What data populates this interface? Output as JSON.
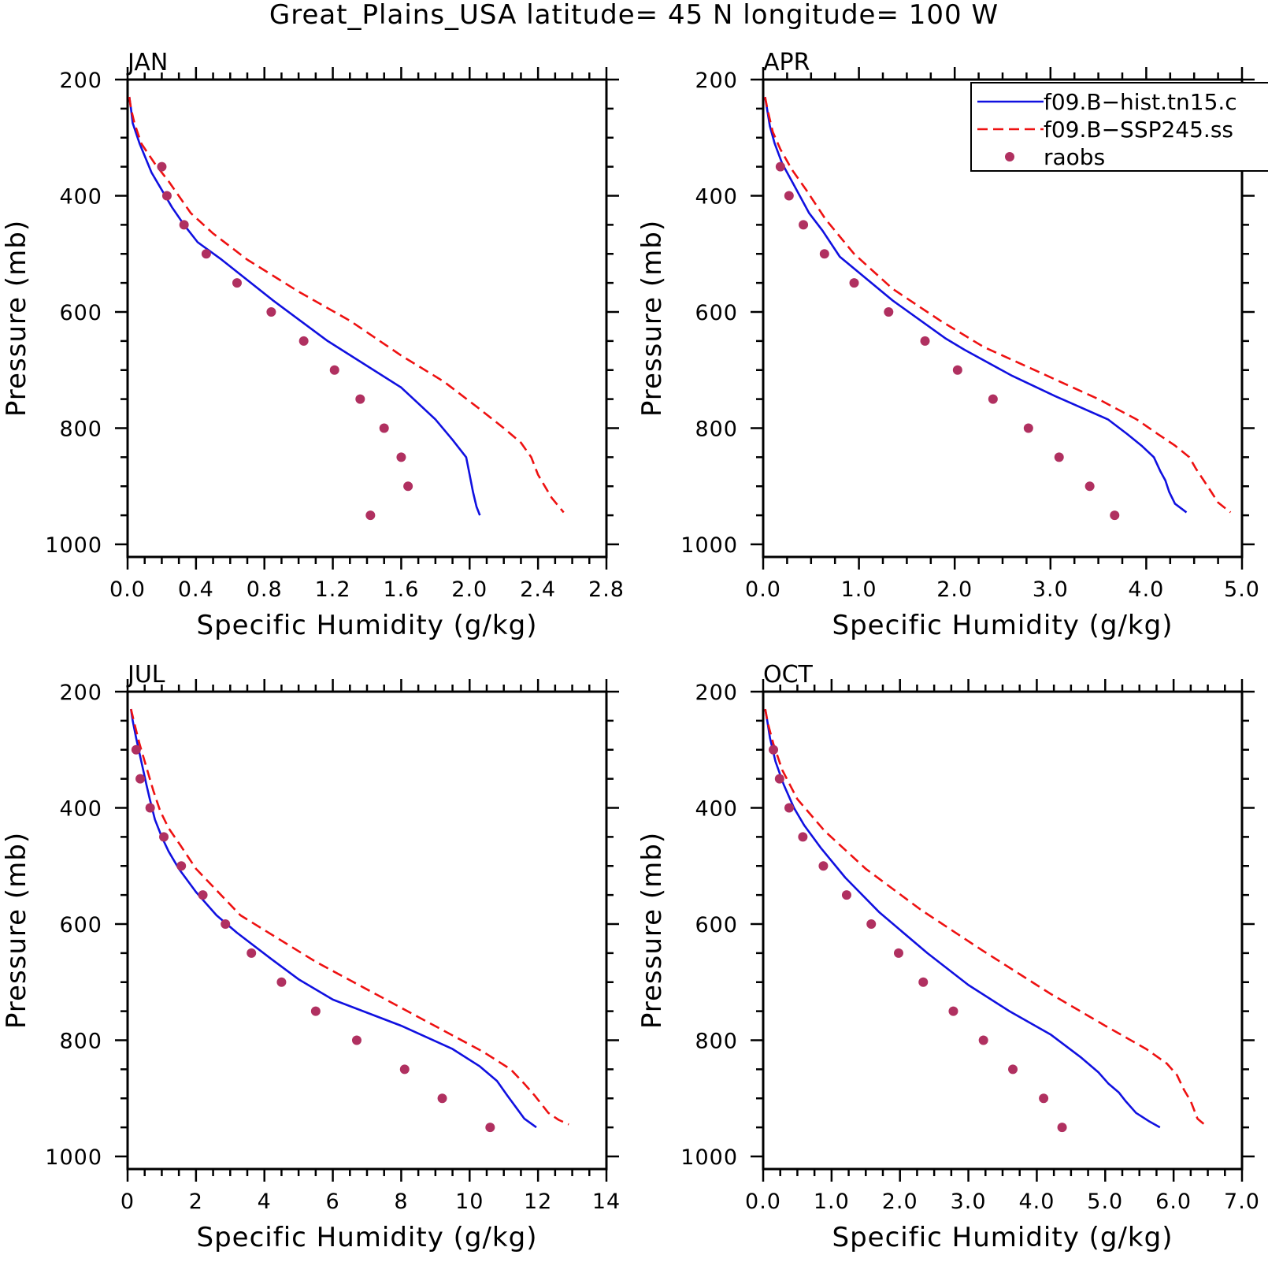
{
  "title": "Great_Plains_USA  latitude= 45 N longitude= 100 W",
  "legend": {
    "entries": [
      {
        "label": "f09.B−hist.tn15.c",
        "color": "#1010e0",
        "style": "solid"
      },
      {
        "label": "f09.B−SSP245.ss",
        "color": "#ee1111",
        "style": "dashed"
      },
      {
        "label": "raobs",
        "color": "#b03060",
        "style": "marker"
      }
    ],
    "placement": "top-right of APR panel"
  },
  "chart_data": [
    {
      "type": "line",
      "panel": "JAN",
      "xlabel": "Specific Humidity (g/kg)",
      "ylabel": "Pressure (mb)",
      "xlim": [
        0,
        2.8
      ],
      "ylim": [
        1000,
        200
      ],
      "y_inverted": true,
      "xticks": [
        "0.0",
        "0.4",
        "0.8",
        "1.2",
        "1.6",
        "2.0",
        "2.4",
        "2.8"
      ],
      "yticks": [
        "200",
        "400",
        "600",
        "800",
        "1000"
      ],
      "series": [
        {
          "name": "f09.B−hist.tn15.c",
          "points": [
            [
              0.01,
              230
            ],
            [
              0.02,
              250
            ],
            [
              0.03,
              275
            ],
            [
              0.07,
              310
            ],
            [
              0.14,
              360
            ],
            [
              0.18,
              380
            ],
            [
              0.26,
              420
            ],
            [
              0.33,
              450
            ],
            [
              0.41,
              480
            ],
            [
              0.55,
              510
            ],
            [
              0.85,
              580
            ],
            [
              1.17,
              650
            ],
            [
              1.6,
              730
            ],
            [
              1.8,
              785
            ],
            [
              1.9,
              820
            ],
            [
              1.98,
              850
            ],
            [
              2.0,
              880
            ],
            [
              2.02,
              910
            ],
            [
              2.04,
              935
            ],
            [
              2.06,
              950
            ]
          ]
        },
        {
          "name": "f09.B−SSP245.ss",
          "points": [
            [
              0.01,
              230
            ],
            [
              0.02,
              250
            ],
            [
              0.04,
              275
            ],
            [
              0.08,
              310
            ],
            [
              0.16,
              345
            ],
            [
              0.24,
              375
            ],
            [
              0.37,
              430
            ],
            [
              0.5,
              465
            ],
            [
              0.7,
              510
            ],
            [
              1.0,
              565
            ],
            [
              1.3,
              615
            ],
            [
              1.6,
              675
            ],
            [
              1.85,
              720
            ],
            [
              2.05,
              765
            ],
            [
              2.2,
              800
            ],
            [
              2.3,
              825
            ],
            [
              2.36,
              850
            ],
            [
              2.4,
              880
            ],
            [
              2.44,
              900
            ],
            [
              2.48,
              920
            ],
            [
              2.55,
              945
            ]
          ]
        },
        {
          "name": "raobs",
          "points": [
            [
              0.2,
              350
            ],
            [
              0.23,
              400
            ],
            [
              0.33,
              450
            ],
            [
              0.46,
              500
            ],
            [
              0.64,
              550
            ],
            [
              0.84,
              600
            ],
            [
              1.03,
              650
            ],
            [
              1.21,
              700
            ],
            [
              1.36,
              750
            ],
            [
              1.5,
              800
            ],
            [
              1.6,
              850
            ],
            [
              1.64,
              900
            ],
            [
              1.42,
              950
            ]
          ]
        }
      ]
    },
    {
      "type": "line",
      "panel": "APR",
      "xlabel": "Specific Humidity (g/kg)",
      "ylabel": "Pressure (mb)",
      "xlim": [
        0,
        5.0
      ],
      "ylim": [
        1000,
        200
      ],
      "y_inverted": true,
      "xticks": [
        "0.0",
        "1.0",
        "2.0",
        "3.0",
        "4.0",
        "5.0"
      ],
      "yticks": [
        "200",
        "400",
        "600",
        "800",
        "1000"
      ],
      "series": [
        {
          "name": "f09.B−hist.tn15.c",
          "points": [
            [
              0.02,
              230
            ],
            [
              0.04,
              250
            ],
            [
              0.07,
              280
            ],
            [
              0.12,
              310
            ],
            [
              0.2,
              345
            ],
            [
              0.3,
              375
            ],
            [
              0.48,
              430
            ],
            [
              0.62,
              460
            ],
            [
              0.8,
              505
            ],
            [
              1.35,
              580
            ],
            [
              1.9,
              645
            ],
            [
              2.1,
              665
            ],
            [
              2.6,
              710
            ],
            [
              3.05,
              745
            ],
            [
              3.6,
              785
            ],
            [
              3.8,
              810
            ],
            [
              3.95,
              830
            ],
            [
              4.08,
              850
            ],
            [
              4.15,
              875
            ],
            [
              4.2,
              890
            ],
            [
              4.24,
              910
            ],
            [
              4.3,
              930
            ],
            [
              4.42,
              945
            ]
          ]
        },
        {
          "name": "f09.B−SSP245.ss",
          "points": [
            [
              0.02,
              230
            ],
            [
              0.05,
              255
            ],
            [
              0.1,
              290
            ],
            [
              0.18,
              320
            ],
            [
              0.3,
              355
            ],
            [
              0.45,
              390
            ],
            [
              0.65,
              440
            ],
            [
              0.95,
              500
            ],
            [
              1.35,
              560
            ],
            [
              1.85,
              615
            ],
            [
              2.3,
              660
            ],
            [
              2.9,
              705
            ],
            [
              3.5,
              750
            ],
            [
              3.9,
              785
            ],
            [
              4.12,
              810
            ],
            [
              4.3,
              830
            ],
            [
              4.45,
              850
            ],
            [
              4.52,
              870
            ],
            [
              4.6,
              890
            ],
            [
              4.68,
              910
            ],
            [
              4.75,
              928
            ],
            [
              4.88,
              945
            ]
          ]
        },
        {
          "name": "raobs",
          "points": [
            [
              0.18,
              350
            ],
            [
              0.27,
              400
            ],
            [
              0.42,
              450
            ],
            [
              0.64,
              500
            ],
            [
              0.95,
              550
            ],
            [
              1.31,
              600
            ],
            [
              1.69,
              650
            ],
            [
              2.03,
              700
            ],
            [
              2.4,
              750
            ],
            [
              2.77,
              800
            ],
            [
              3.09,
              850
            ],
            [
              3.41,
              900
            ],
            [
              3.67,
              950
            ]
          ]
        }
      ]
    },
    {
      "type": "line",
      "panel": "JUL",
      "xlabel": "Specific Humidity (g/kg)",
      "ylabel": "Pressure (mb)",
      "xlim": [
        0,
        14
      ],
      "ylim": [
        1000,
        200
      ],
      "y_inverted": true,
      "xticks": [
        "0",
        "2",
        "4",
        "6",
        "8",
        "10",
        "12",
        "14"
      ],
      "yticks": [
        "200",
        "400",
        "600",
        "800",
        "1000"
      ],
      "series": [
        {
          "name": "f09.B−hist.tn15.c",
          "points": [
            [
              0.1,
              230
            ],
            [
              0.15,
              250
            ],
            [
              0.25,
              280
            ],
            [
              0.4,
              320
            ],
            [
              0.55,
              360
            ],
            [
              0.65,
              385
            ],
            [
              0.8,
              420
            ],
            [
              1.0,
              450
            ],
            [
              1.2,
              475
            ],
            [
              1.5,
              505
            ],
            [
              2.0,
              545
            ],
            [
              2.6,
              585
            ],
            [
              3.2,
              615
            ],
            [
              4.2,
              660
            ],
            [
              5.0,
              695
            ],
            [
              6.0,
              730
            ],
            [
              8.0,
              775
            ],
            [
              9.5,
              815
            ],
            [
              10.3,
              845
            ],
            [
              10.8,
              870
            ],
            [
              11.1,
              895
            ],
            [
              11.35,
              915
            ],
            [
              11.6,
              935
            ],
            [
              11.95,
              950
            ]
          ]
        },
        {
          "name": "f09.B−SSP245.ss",
          "points": [
            [
              0.1,
              230
            ],
            [
              0.2,
              255
            ],
            [
              0.35,
              290
            ],
            [
              0.55,
              330
            ],
            [
              0.75,
              370
            ],
            [
              0.95,
              405
            ],
            [
              1.2,
              435
            ],
            [
              1.55,
              465
            ],
            [
              2.0,
              505
            ],
            [
              3.3,
              585
            ],
            [
              5.5,
              665
            ],
            [
              8.5,
              760
            ],
            [
              10.4,
              820
            ],
            [
              11.2,
              850
            ],
            [
              11.6,
              875
            ],
            [
              11.9,
              895
            ],
            [
              12.1,
              910
            ],
            [
              12.3,
              925
            ],
            [
              12.6,
              937
            ],
            [
              12.9,
              945
            ]
          ]
        },
        {
          "name": "raobs",
          "points": [
            [
              0.25,
              300
            ],
            [
              0.37,
              350
            ],
            [
              0.66,
              400
            ],
            [
              1.06,
              450
            ],
            [
              1.57,
              500
            ],
            [
              2.2,
              550
            ],
            [
              2.86,
              600
            ],
            [
              3.62,
              650
            ],
            [
              4.5,
              700
            ],
            [
              5.5,
              750
            ],
            [
              6.7,
              800
            ],
            [
              8.1,
              850
            ],
            [
              9.2,
              900
            ],
            [
              10.6,
              950
            ]
          ]
        }
      ]
    },
    {
      "type": "line",
      "panel": "OCT",
      "xlabel": "Specific Humidity (g/kg)",
      "ylabel": "Pressure (mb)",
      "xlim": [
        0,
        7.0
      ],
      "ylim": [
        1000,
        200
      ],
      "y_inverted": true,
      "xticks": [
        "0.0",
        "1.0",
        "2.0",
        "3.0",
        "4.0",
        "5.0",
        "6.0",
        "7.0"
      ],
      "yticks": [
        "200",
        "400",
        "600",
        "800",
        "1000"
      ],
      "series": [
        {
          "name": "f09.B−hist.tn15.c",
          "points": [
            [
              0.03,
              230
            ],
            [
              0.06,
              250
            ],
            [
              0.1,
              280
            ],
            [
              0.18,
              320
            ],
            [
              0.3,
              360
            ],
            [
              0.45,
              400
            ],
            [
              0.6,
              430
            ],
            [
              0.85,
              470
            ],
            [
              1.2,
              520
            ],
            [
              1.7,
              580
            ],
            [
              2.4,
              650
            ],
            [
              3.0,
              705
            ],
            [
              3.6,
              750
            ],
            [
              4.2,
              790
            ],
            [
              4.65,
              830
            ],
            [
              4.9,
              855
            ],
            [
              5.05,
              875
            ],
            [
              5.2,
              890
            ],
            [
              5.3,
              905
            ],
            [
              5.45,
              925
            ],
            [
              5.65,
              940
            ],
            [
              5.8,
              950
            ]
          ]
        },
        {
          "name": "f09.B−SSP245.ss",
          "points": [
            [
              0.03,
              230
            ],
            [
              0.07,
              255
            ],
            [
              0.15,
              290
            ],
            [
              0.28,
              335
            ],
            [
              0.5,
              385
            ],
            [
              0.9,
              440
            ],
            [
              1.5,
              505
            ],
            [
              2.3,
              575
            ],
            [
              3.2,
              645
            ],
            [
              4.2,
              720
            ],
            [
              5.0,
              775
            ],
            [
              5.6,
              815
            ],
            [
              5.9,
              840
            ],
            [
              6.05,
              860
            ],
            [
              6.15,
              885
            ],
            [
              6.25,
              905
            ],
            [
              6.3,
              920
            ],
            [
              6.35,
              935
            ],
            [
              6.45,
              945
            ]
          ]
        },
        {
          "name": "raobs",
          "points": [
            [
              0.15,
              300
            ],
            [
              0.24,
              350
            ],
            [
              0.38,
              400
            ],
            [
              0.58,
              450
            ],
            [
              0.88,
              500
            ],
            [
              1.22,
              550
            ],
            [
              1.58,
              600
            ],
            [
              1.98,
              650
            ],
            [
              2.34,
              700
            ],
            [
              2.78,
              750
            ],
            [
              3.22,
              800
            ],
            [
              3.65,
              850
            ],
            [
              4.1,
              900
            ],
            [
              4.37,
              950
            ]
          ]
        }
      ]
    }
  ]
}
